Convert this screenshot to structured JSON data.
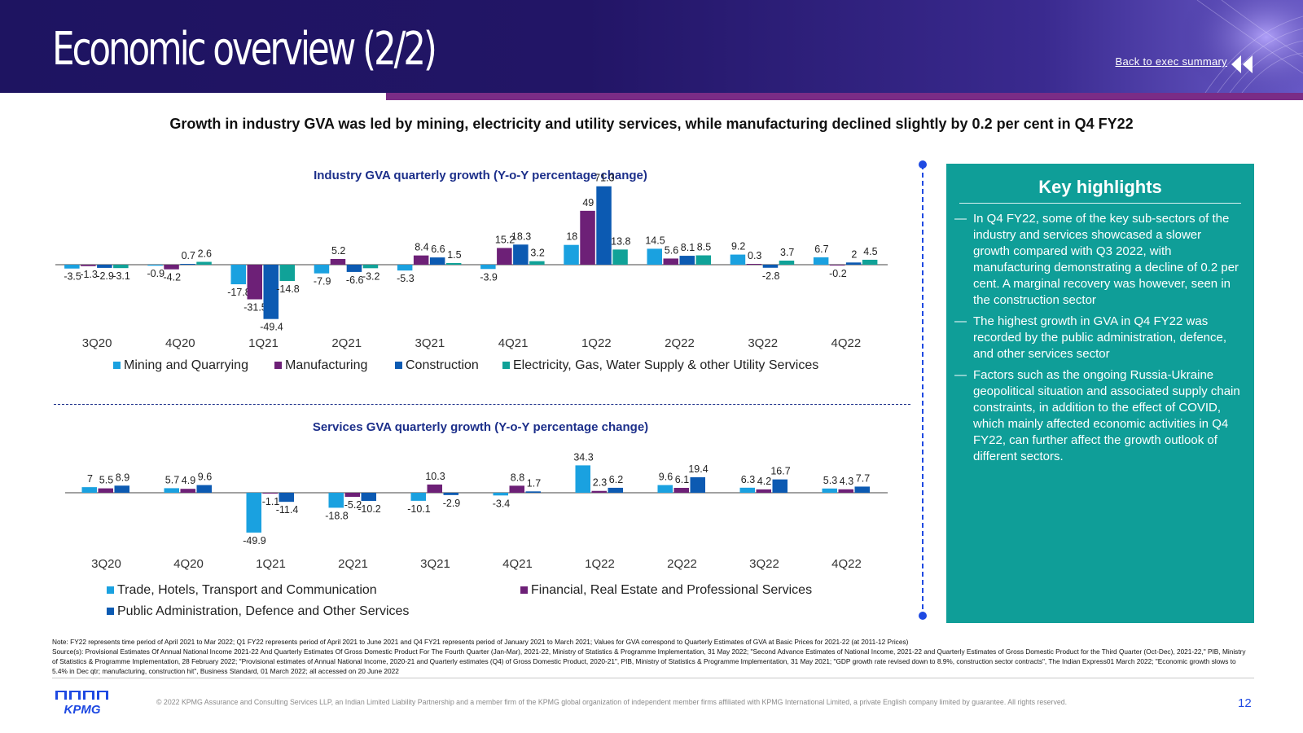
{
  "header": {
    "title": "Economic overview (2/2)",
    "back_link": "Back to exec summary"
  },
  "subtitle": "Growth in industry GVA was led by mining, electricity and utility services, while manufacturing declined slightly by 0.2 per cent in Q4 FY22",
  "chart_data": [
    {
      "type": "bar",
      "title": "Industry GVA quarterly growth (Y-o-Y percentage change)",
      "xlabel": "",
      "ylabel": "",
      "legend_position": "bottom",
      "grid": false,
      "categories": [
        "3Q20",
        "4Q20",
        "1Q21",
        "2Q21",
        "3Q21",
        "4Q21",
        "1Q22",
        "2Q22",
        "3Q22",
        "4Q22"
      ],
      "series": [
        {
          "name": "Mining and Quarrying",
          "color": "#1aa1e0",
          "values": [
            -3.5,
            -0.9,
            -17.8,
            -7.9,
            -5.3,
            -3.9,
            18,
            14.5,
            9.2,
            6.7
          ]
        },
        {
          "name": "Manufacturing",
          "color": "#6d2077",
          "values": [
            -1.3,
            -4.2,
            -31.5,
            5.2,
            8.4,
            15.2,
            49.0,
            5.6,
            0.3,
            -0.2
          ]
        },
        {
          "name": "Construction",
          "color": "#0c5ab2",
          "values": [
            -2.9,
            0.7,
            -49.4,
            -6.6,
            6.6,
            18.3,
            71.3,
            8.1,
            -2.8,
            2.0
          ]
        },
        {
          "name": "Electricity, Gas, Water Supply & other Utility Services",
          "color": "#10a298",
          "values": [
            -3.1,
            2.6,
            -14.8,
            -3.2,
            1.5,
            3.2,
            13.8,
            8.5,
            3.7,
            4.5
          ]
        }
      ]
    },
    {
      "type": "bar",
      "title": "Services GVA quarterly growth (Y-o-Y percentage change)",
      "xlabel": "",
      "ylabel": "",
      "legend_position": "bottom",
      "grid": false,
      "categories": [
        "3Q20",
        "4Q20",
        "1Q21",
        "2Q21",
        "3Q21",
        "4Q21",
        "1Q22",
        "2Q22",
        "3Q22",
        "4Q22"
      ],
      "series": [
        {
          "name": "Trade, Hotels, Transport and Communication",
          "color": "#1aa1e0",
          "values": [
            7.0,
            5.7,
            -49.9,
            -18.8,
            -10.1,
            -3.4,
            34.3,
            9.6,
            6.3,
            5.3
          ]
        },
        {
          "name": "Financial, Real Estate and Professional Services",
          "color": "#6d2077",
          "values": [
            5.5,
            4.9,
            -1.1,
            -5.2,
            10.3,
            8.8,
            2.3,
            6.1,
            4.2,
            4.3
          ]
        },
        {
          "name": "Public Administration, Defence and Other Services",
          "color": "#0c5ab2",
          "values": [
            8.9,
            9.6,
            -11.4,
            -10.2,
            -2.9,
            1.7,
            6.2,
            19.4,
            16.7,
            7.7
          ]
        }
      ]
    }
  ],
  "highlights": {
    "title": "Key highlights",
    "dash": "—",
    "items": [
      "In Q4 FY22, some of the key sub-sectors of the industry and services showcased a slower growth compared with Q3 2022, with manufacturing demonstrating a decline of 0.2 per cent. A marginal recovery was however, seen in the construction sector",
      "The highest growth in GVA in Q4 FY22 was recorded by the public administration, defence, and other services sector",
      "Factors such as the ongoing Russia-Ukraine geopolitical situation and associated supply chain constraints, in addition to the effect of COVID, which mainly affected economic activities in Q4 FY22, can further affect the growth outlook of different sectors."
    ]
  },
  "notes": {
    "note": "Note: FY22 represents time period of April 2021 to Mar 2022; Q1 FY22 represents period of April 2021 to June 2021 and Q4 FY21 represents period of January 2021 to March 2021; Values for GVA correspond to Quarterly Estimates of GVA at Basic Prices for 2021-22 (at 2011-12 Prices)",
    "source": "Source(s): Provisional Estimates Of Annual National Income 2021-22 And Quarterly Estimates Of Gross Domestic Product For The Fourth Quarter (Jan-Mar), 2021-22, Ministry of Statistics & Programme Implementation, 31 May 2022; \"Second Advance Estimates of National Income, 2021-22 and Quarterly Estimates of Gross Domestic Product for the Third Quarter (Oct-Dec), 2021-22,\" PIB, Ministry of Statistics & Programme Implementation, 28 February 2022; \"Provisional estimates of Annual National Income, 2020-21 and Quarterly estimates (Q4) of Gross Domestic Product, 2020-21\", PIB, Ministry of Statistics & Programme Implementation, 31 May 2021; \"GDP growth rate revised down to 8.9%, construction sector contracts\", The Indian Express01 March 2022; \"Economic growth slows to 5.4% in Dec qtr; manufacturing, construction hit\", Business Standard, 01 March 2022; all accessed on 20 June 2022"
  },
  "footer": {
    "logo": "KPMG",
    "copyright": "© 2022 KPMG Assurance and Consulting Services LLP, an Indian Limited Liability Partnership and a member firm of the KPMG global organization of independent member firms affiliated with KPMG International Limited, a private English company limited by guarantee. All rights reserved.",
    "page_number": "12"
  },
  "colors": {
    "header": "#1e1461",
    "accent": "#7a2c86",
    "panel": "#0f9e98",
    "title_blue": "#1c2f8a"
  }
}
